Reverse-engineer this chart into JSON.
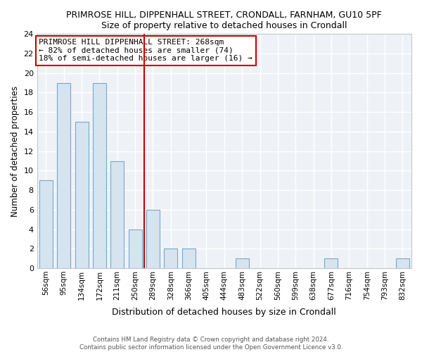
{
  "title1": "PRIMROSE HILL, DIPPENHALL STREET, CRONDALL, FARNHAM, GU10 5PF",
  "title2": "Size of property relative to detached houses in Crondall",
  "xlabel": "Distribution of detached houses by size in Crondall",
  "ylabel": "Number of detached properties",
  "bin_labels": [
    "56sqm",
    "95sqm",
    "134sqm",
    "172sqm",
    "211sqm",
    "250sqm",
    "289sqm",
    "328sqm",
    "366sqm",
    "405sqm",
    "444sqm",
    "483sqm",
    "522sqm",
    "560sqm",
    "599sqm",
    "638sqm",
    "677sqm",
    "716sqm",
    "754sqm",
    "793sqm",
    "832sqm"
  ],
  "bar_heights": [
    9,
    19,
    15,
    19,
    11,
    4,
    6,
    2,
    2,
    0,
    0,
    1,
    0,
    0,
    0,
    0,
    1,
    0,
    0,
    0,
    1
  ],
  "bar_color": "#d6e4f0",
  "bar_edge_color": "#7aa8c8",
  "vline_x": 5.5,
  "vline_color": "#cc0000",
  "annotation_text": "PRIMROSE HILL DIPPENHALL STREET: 268sqm\n← 82% of detached houses are smaller (74)\n18% of semi-detached houses are larger (16) →",
  "annotation_box_color": "white",
  "annotation_box_edge": "#cc0000",
  "ylim": [
    0,
    24
  ],
  "yticks": [
    0,
    2,
    4,
    6,
    8,
    10,
    12,
    14,
    16,
    18,
    20,
    22,
    24
  ],
  "footer1": "Contains HM Land Registry data © Crown copyright and database right 2024.",
  "footer2": "Contains public sector information licensed under the Open Government Licence v3.0.",
  "bg_color": "#ffffff",
  "plot_bg_color": "#eef2f7",
  "grid_color": "#ffffff",
  "spine_color": "#c0c8d0"
}
